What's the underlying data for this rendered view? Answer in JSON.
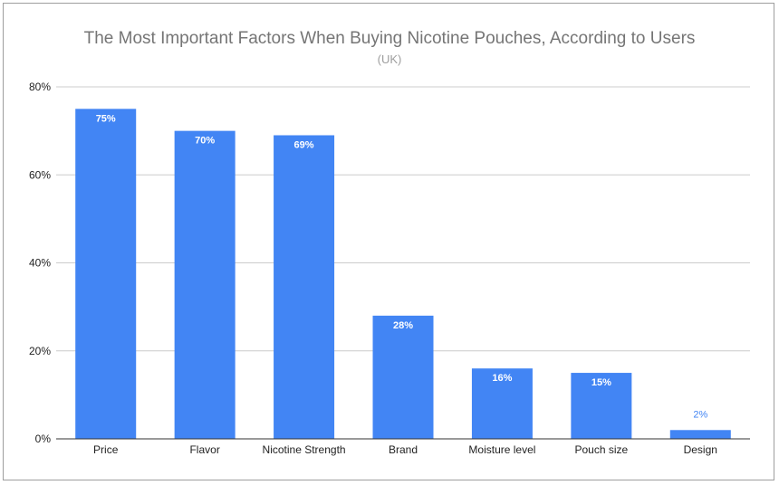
{
  "chart_data": {
    "type": "bar",
    "title": "The Most Important Factors When Buying Nicotine Pouches, According to Users",
    "subtitle": "(UK)",
    "xlabel": "",
    "ylabel": "",
    "categories": [
      "Price",
      "Flavor",
      "Nicotine Strength",
      "Brand",
      "Moisture level",
      "Pouch size",
      "Design"
    ],
    "values": [
      75,
      70,
      69,
      28,
      16,
      15,
      2
    ],
    "data_labels": [
      "75%",
      "70%",
      "69%",
      "28%",
      "16%",
      "15%",
      "2%"
    ],
    "ylim": [
      0,
      80
    ],
    "yticks": [
      0,
      20,
      40,
      60,
      80
    ],
    "ytick_labels": [
      "0%",
      "20%",
      "40%",
      "60%",
      "80%"
    ],
    "grid": true,
    "legend": "none",
    "colors": {
      "bar": "#4285f4",
      "grid": "#cccccc",
      "axis": "#333333"
    }
  }
}
